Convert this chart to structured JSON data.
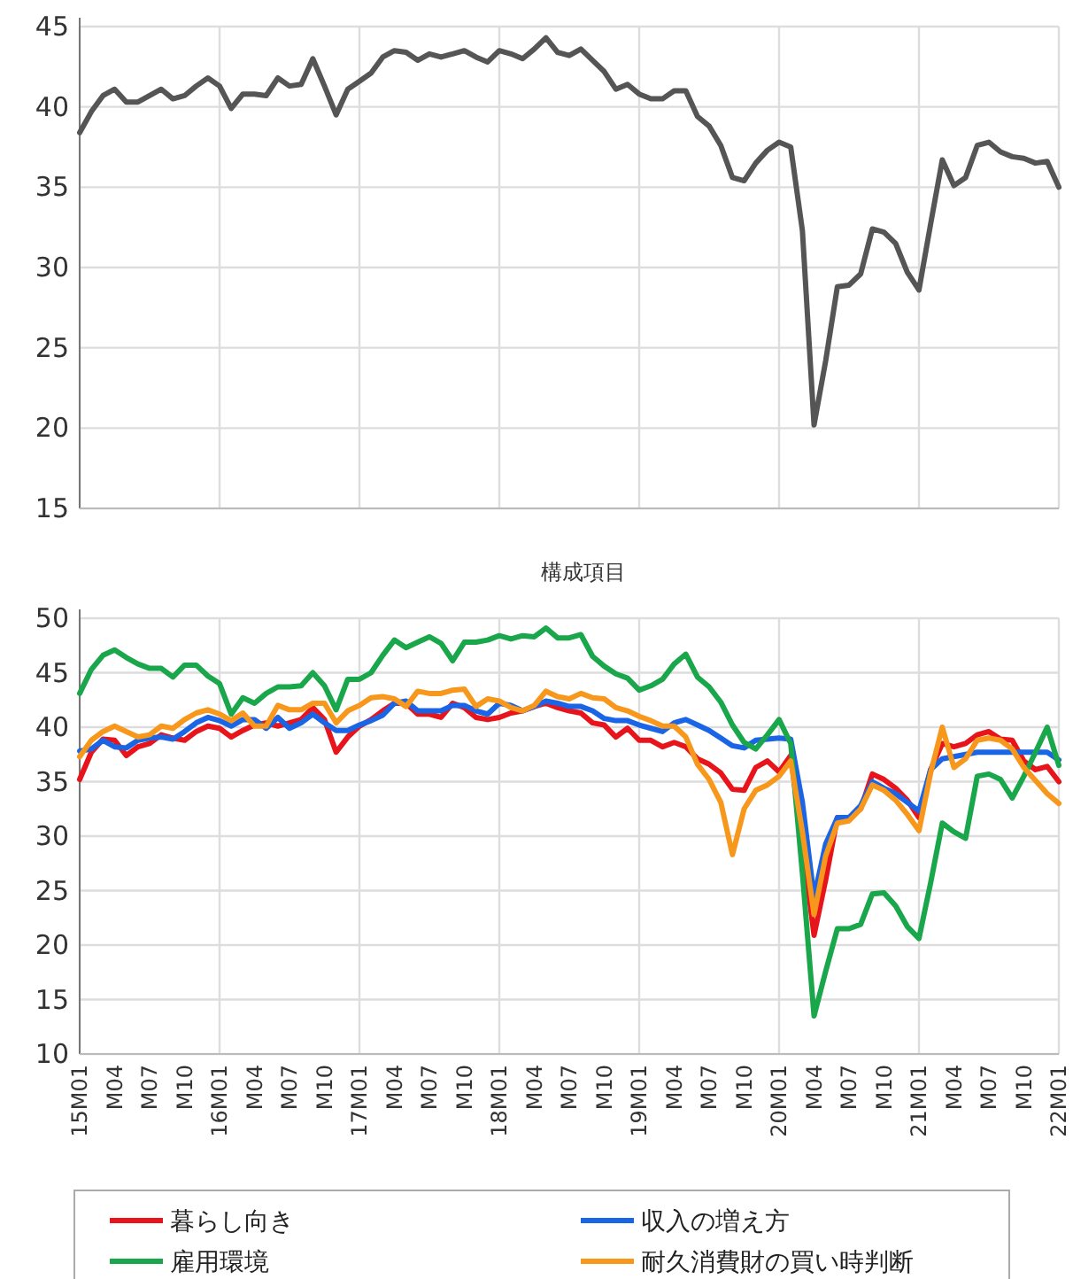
{
  "chart_data": [
    {
      "type": "line",
      "categories": [
        null,
        null,
        null,
        null,
        null,
        null,
        null,
        null,
        null,
        null,
        null,
        null,
        null,
        null,
        null,
        null,
        null,
        null,
        null,
        null,
        null,
        null,
        null,
        null,
        null,
        null,
        null,
        null,
        null,
        null,
        null,
        null,
        null,
        null,
        null,
        null,
        null,
        null,
        null,
        null,
        null,
        null,
        null,
        null,
        null,
        null,
        null,
        null,
        null,
        null,
        null,
        null,
        null,
        null,
        null,
        null,
        null,
        null,
        null,
        null,
        null,
        null,
        null,
        null,
        null,
        null,
        null,
        null,
        null,
        null,
        null,
        null,
        null,
        null,
        null,
        null,
        null,
        null,
        null,
        null,
        null,
        null,
        null,
        null,
        null
      ],
      "series": [
        {
          "color": "#555555",
          "values": [
            38.4,
            39.7,
            40.7,
            41.1,
            40.3,
            40.3,
            40.7,
            41.1,
            40.5,
            40.7,
            41.3,
            41.8,
            41.3,
            39.9,
            40.8,
            40.8,
            40.7,
            41.8,
            41.3,
            41.4,
            43.0,
            41.3,
            39.5,
            41.1,
            41.6,
            42.1,
            43.1,
            43.5,
            43.4,
            42.9,
            43.3,
            43.1,
            43.3,
            43.5,
            43.1,
            42.8,
            43.5,
            43.3,
            43.0,
            43.6,
            44.3,
            43.4,
            43.2,
            43.6,
            42.9,
            42.2,
            41.1,
            41.4,
            40.8,
            40.5,
            40.5,
            41.0,
            41.0,
            39.4,
            38.8,
            37.6,
            35.6,
            35.4,
            36.5,
            37.3,
            37.8,
            37.5,
            32.3,
            20.2,
            24.2,
            28.8,
            28.9,
            29.6,
            32.4,
            32.2,
            31.5,
            29.7,
            28.6,
            32.7,
            36.7,
            35.1,
            35.6,
            37.6,
            37.8,
            37.2,
            36.9,
            36.8,
            36.5,
            36.6,
            35.0
          ]
        }
      ],
      "ylim": [
        15,
        45
      ],
      "yticks": [
        15,
        20,
        25,
        30,
        35,
        40,
        45
      ],
      "grid": true,
      "tick_labels": "y"
    },
    {
      "type": "line",
      "title": "構成項目",
      "categories": [
        "15M01",
        null,
        null,
        "M04",
        null,
        null,
        "M07",
        null,
        null,
        "M10",
        null,
        null,
        "16M01",
        null,
        null,
        "M04",
        null,
        null,
        "M07",
        null,
        null,
        "M10",
        null,
        null,
        "17M01",
        null,
        null,
        "M04",
        null,
        null,
        "M07",
        null,
        null,
        "M10",
        null,
        null,
        "18M01",
        null,
        null,
        "M04",
        null,
        null,
        "M07",
        null,
        null,
        "M10",
        null,
        null,
        "19M01",
        null,
        null,
        "M04",
        null,
        null,
        "M07",
        null,
        null,
        "M10",
        null,
        null,
        "20M01",
        null,
        null,
        "M04",
        null,
        null,
        "M07",
        null,
        null,
        "M10",
        null,
        null,
        "21M01",
        null,
        null,
        "M04",
        null,
        null,
        "M07",
        null,
        null,
        "M10",
        null,
        null,
        "22M01"
      ],
      "series": [
        {
          "name": "暮らし向き",
          "color": "#e8141b",
          "values": [
            35.2,
            37.7,
            38.9,
            38.8,
            37.4,
            38.2,
            38.5,
            39.3,
            39.0,
            38.8,
            39.6,
            40.1,
            39.9,
            39.1,
            39.7,
            40.2,
            40.4,
            40.1,
            40.4,
            40.7,
            41.8,
            40.7,
            37.7,
            39.1,
            40.1,
            40.7,
            41.5,
            42.2,
            42.2,
            41.2,
            41.2,
            40.9,
            42.2,
            41.8,
            40.9,
            40.7,
            40.9,
            41.3,
            41.5,
            41.9,
            42.2,
            41.8,
            41.5,
            41.3,
            40.4,
            40.2,
            39.1,
            39.9,
            38.8,
            38.8,
            38.2,
            38.6,
            38.2,
            37.1,
            36.6,
            35.8,
            34.3,
            34.2,
            36.3,
            36.9,
            35.9,
            37.4,
            29.3,
            20.9,
            26.0,
            31.7,
            31.7,
            32.5,
            35.7,
            35.2,
            34.4,
            33.3,
            31.7,
            36.1,
            38.5,
            38.2,
            38.5,
            39.3,
            39.6,
            38.9,
            38.8,
            36.9,
            36.1,
            36.4,
            35.0
          ]
        },
        {
          "name": "収入の増え方",
          "color": "#1a64e6",
          "values": [
            37.8,
            38.0,
            38.8,
            38.2,
            38.1,
            38.8,
            39.0,
            39.1,
            38.9,
            39.6,
            40.4,
            40.9,
            40.6,
            40.1,
            40.7,
            40.7,
            39.9,
            40.9,
            39.9,
            40.4,
            41.2,
            40.4,
            39.7,
            39.7,
            40.2,
            40.6,
            41.1,
            42.2,
            42.4,
            41.5,
            41.5,
            41.5,
            42.0,
            42.0,
            41.5,
            41.2,
            42.2,
            42.0,
            41.5,
            41.9,
            42.4,
            42.2,
            41.9,
            41.9,
            41.5,
            40.8,
            40.6,
            40.6,
            40.2,
            39.9,
            39.6,
            40.4,
            40.7,
            40.2,
            39.7,
            39.0,
            38.3,
            38.1,
            38.8,
            38.9,
            39.0,
            38.9,
            33.1,
            24.4,
            29.3,
            31.7,
            31.7,
            32.8,
            35.0,
            34.4,
            33.9,
            33.1,
            32.3,
            36.1,
            37.1,
            37.3,
            37.5,
            37.7,
            37.7,
            37.7,
            37.7,
            37.7,
            37.7,
            37.7,
            37.0
          ]
        },
        {
          "name": "雇用環境",
          "color": "#1aa64a",
          "values": [
            43.1,
            45.3,
            46.6,
            47.1,
            46.4,
            45.8,
            45.4,
            45.4,
            44.6,
            45.7,
            45.7,
            44.7,
            44.0,
            41.2,
            42.7,
            42.2,
            43.1,
            43.7,
            43.7,
            43.8,
            45.0,
            43.8,
            41.6,
            44.4,
            44.4,
            45.0,
            46.6,
            48.0,
            47.3,
            47.8,
            48.3,
            47.7,
            46.1,
            47.8,
            47.8,
            48.0,
            48.4,
            48.1,
            48.4,
            48.3,
            49.1,
            48.2,
            48.2,
            48.5,
            46.5,
            45.6,
            44.9,
            44.5,
            43.4,
            43.8,
            44.4,
            45.8,
            46.7,
            44.6,
            43.7,
            42.3,
            40.2,
            38.6,
            38.0,
            39.3,
            40.7,
            38.5,
            26.6,
            13.5,
            17.6,
            21.5,
            21.5,
            21.9,
            24.7,
            24.8,
            23.6,
            21.7,
            20.6,
            25.7,
            31.2,
            30.4,
            29.8,
            35.5,
            35.7,
            35.2,
            33.5,
            35.5,
            37.7,
            40.0,
            36.5
          ]
        },
        {
          "name": "耐久消費財の買い時判断",
          "color": "#f7981d",
          "values": [
            37.3,
            38.8,
            39.6,
            40.1,
            39.6,
            39.1,
            39.3,
            40.1,
            39.9,
            40.7,
            41.3,
            41.6,
            41.2,
            40.6,
            41.3,
            40.1,
            40.1,
            42.0,
            41.6,
            41.6,
            42.2,
            42.2,
            40.4,
            41.5,
            42.0,
            42.7,
            42.8,
            42.6,
            41.9,
            43.3,
            43.1,
            43.1,
            43.4,
            43.5,
            41.9,
            42.6,
            42.4,
            41.8,
            41.5,
            42.0,
            43.3,
            42.8,
            42.6,
            43.1,
            42.7,
            42.6,
            41.8,
            41.5,
            41.0,
            40.6,
            40.1,
            40.1,
            39.1,
            36.6,
            35.2,
            33.1,
            28.3,
            32.5,
            34.2,
            34.7,
            35.5,
            36.9,
            30.4,
            22.8,
            28.2,
            31.2,
            31.4,
            32.5,
            34.7,
            34.2,
            33.3,
            32.0,
            30.5,
            35.8,
            40.0,
            36.3,
            37.1,
            38.8,
            39.0,
            38.8,
            38.0,
            36.3,
            35.1,
            33.9,
            33.0
          ]
        }
      ],
      "ylim": [
        10,
        50
      ],
      "yticks": [
        10,
        15,
        20,
        25,
        30,
        35,
        40,
        45,
        50
      ],
      "grid": true,
      "legend": "bottom"
    }
  ]
}
